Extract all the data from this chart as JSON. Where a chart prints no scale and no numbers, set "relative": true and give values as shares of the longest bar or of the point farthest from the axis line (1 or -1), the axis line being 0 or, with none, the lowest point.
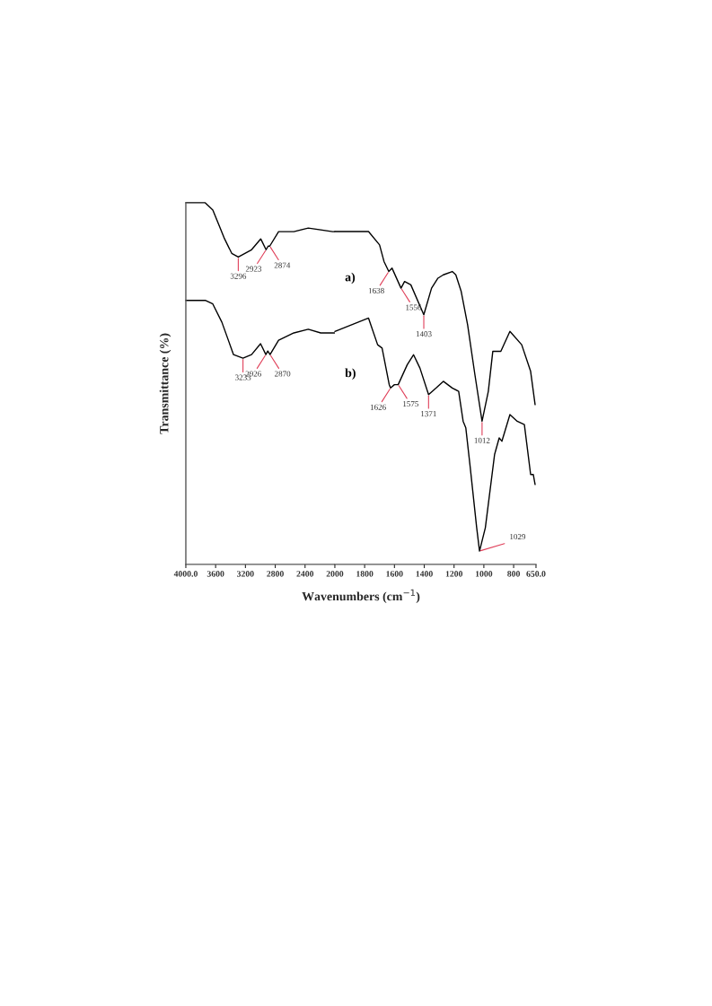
{
  "chart_data": [
    {
      "type": "line",
      "relative": true,
      "ylabel": "Transmittance (%)",
      "xlim": [
        4000,
        2000
      ],
      "xticks": [
        {
          "value": 4000,
          "label": "4000.0"
        },
        3600,
        3200,
        2800,
        2400,
        2000
      ],
      "tick_labels": "x",
      "series": [
        {
          "color": "#000000",
          "x": [
            4000,
            3740,
            3638,
            3480,
            3384,
            3296,
            3118,
            2995,
            2923,
            2895,
            2874,
            2755,
            2550,
            2357,
            2030,
            2000
          ],
          "values": [
            1.0,
            1.0,
            0.98,
            0.9,
            0.86,
            0.85,
            0.87,
            0.9,
            0.87,
            0.88,
            0.88,
            0.92,
            0.92,
            0.93,
            0.92,
            0.92
          ]
        },
        {
          "color": "#000000",
          "x": [
            4000,
            3740,
            3638,
            3517,
            3360,
            3233,
            3118,
            2997,
            2926,
            2900,
            2870,
            2755,
            2550,
            2357,
            2190,
            2030,
            2000
          ],
          "values": [
            0.73,
            0.73,
            0.72,
            0.67,
            0.58,
            0.57,
            0.58,
            0.61,
            0.58,
            0.59,
            0.58,
            0.62,
            0.64,
            0.65,
            0.64,
            0.64,
            0.64
          ]
        }
      ],
      "annotations": [
        {
          "text": "3296",
          "x": 3296,
          "y": 0.85
        },
        {
          "text": "2923",
          "x": 2923,
          "y": 0.87
        },
        {
          "text": "2874",
          "x": 2874,
          "y": 0.88
        },
        {
          "text": "3233",
          "x": 3233,
          "y": 0.57
        },
        {
          "text": "2926",
          "x": 2926,
          "y": 0.58
        },
        {
          "text": "2870",
          "x": 2870,
          "y": 0.58
        }
      ]
    },
    {
      "type": "line",
      "relative": true,
      "xlabel": "Wavenumbers (cm$^{−1}$)",
      "xlim": [
        2000,
        650
      ],
      "xticks": [
        1800,
        1600,
        1400,
        1200,
        1000,
        800,
        {
          "value": 650,
          "label": "650.0"
        }
      ],
      "tick_labels": "x",
      "series": [
        {
          "name": "a)",
          "color": "#000000",
          "x": [
            2000,
            1834,
            1774,
            1700,
            1670,
            1638,
            1616,
            1556,
            1532,
            1490,
            1403,
            1351,
            1308,
            1272,
            1212,
            1188,
            1152,
            1109,
            1060,
            1012,
            970,
            940,
            886,
            825,
            746,
            686,
            656
          ],
          "values": [
            1.0,
            1.0,
            1.0,
            0.96,
            0.91,
            0.88,
            0.89,
            0.83,
            0.85,
            0.84,
            0.75,
            0.83,
            0.86,
            0.87,
            0.88,
            0.87,
            0.82,
            0.72,
            0.57,
            0.43,
            0.52,
            0.64,
            0.64,
            0.7,
            0.66,
            0.58,
            0.48
          ]
        },
        {
          "name": "b)",
          "color": "#000000",
          "x": [
            2000,
            1774,
            1713,
            1683,
            1635,
            1626,
            1600,
            1575,
            1514,
            1472,
            1429,
            1371,
            1320,
            1272,
            1212,
            1169,
            1139,
            1121,
            1091,
            1048,
            1029,
            990,
            928,
            897,
            879,
            825,
            776,
            728,
            686,
            668,
            656
          ],
          "values": [
            0.7,
            0.74,
            0.66,
            0.65,
            0.54,
            0.53,
            0.54,
            0.54,
            0.6,
            0.63,
            0.59,
            0.51,
            0.53,
            0.55,
            0.53,
            0.52,
            0.43,
            0.41,
            0.29,
            0.11,
            0.04,
            0.11,
            0.33,
            0.38,
            0.37,
            0.45,
            0.43,
            0.42,
            0.27,
            0.27,
            0.24
          ]
        }
      ],
      "annotations": [
        {
          "text": "1638",
          "x": 1638,
          "y": 0.88
        },
        {
          "text": "1556",
          "x": 1556,
          "y": 0.83
        },
        {
          "text": "1403",
          "x": 1403,
          "y": 0.75
        },
        {
          "text": "1012",
          "x": 1012,
          "y": 0.43
        },
        {
          "text": "1626",
          "x": 1626,
          "y": 0.53
        },
        {
          "text": "1575",
          "x": 1575,
          "y": 0.54
        },
        {
          "text": "1371",
          "x": 1371,
          "y": 0.51
        },
        {
          "text": "1029",
          "x": 1029,
          "y": 0.04
        }
      ]
    }
  ]
}
